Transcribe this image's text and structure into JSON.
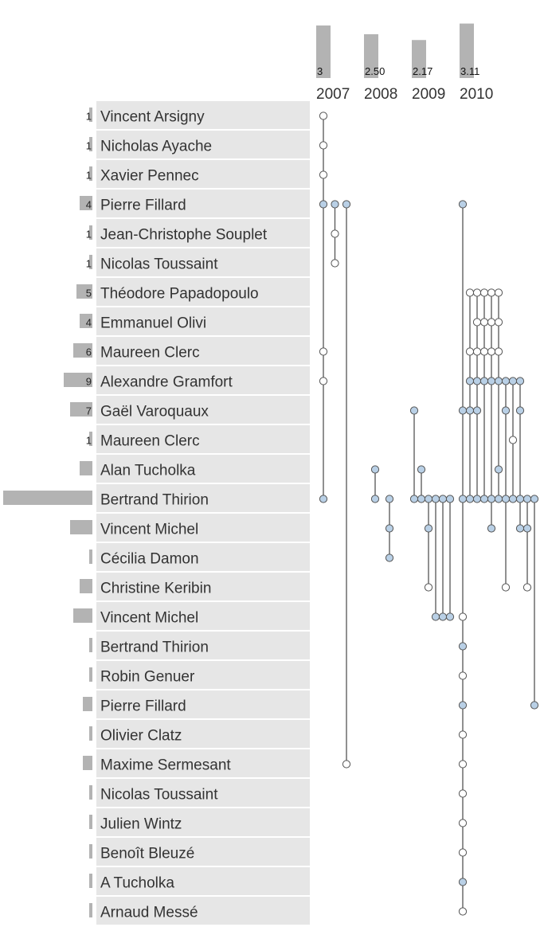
{
  "chart_data": {
    "type": "matrix-timeline",
    "colors": {
      "row_background": "#e6e6e6",
      "bar": "#b3b3b3",
      "node_highlight": "#b9d0e6",
      "node_default": "#ffffff",
      "node_stroke": "#555555",
      "line": "#555555"
    },
    "years": [
      {
        "label": "2007",
        "value_label": "3",
        "value": 3.0
      },
      {
        "label": "2008",
        "value_label": "2.50",
        "value": 2.5
      },
      {
        "label": "2009",
        "value_label": "2.17",
        "value": 2.17
      },
      {
        "label": "2010",
        "value_label": "3.11",
        "value": 3.11
      }
    ],
    "authors": [
      {
        "name": "Vincent Arsigny",
        "count_label": "1",
        "count": 1
      },
      {
        "name": "Nicholas Ayache",
        "count_label": "1",
        "count": 1
      },
      {
        "name": "Xavier Pennec",
        "count_label": "1",
        "count": 1
      },
      {
        "name": "Pierre Fillard",
        "count_label": "4",
        "count": 4
      },
      {
        "name": "Jean-Christophe Souplet",
        "count_label": "1",
        "count": 1
      },
      {
        "name": "Nicolas Toussaint",
        "count_label": "1",
        "count": 1
      },
      {
        "name": "Théodore Papadopoulo",
        "count_label": "5",
        "count": 5
      },
      {
        "name": "Emmanuel Olivi",
        "count_label": "4",
        "count": 4
      },
      {
        "name": "Maureen Clerc",
        "count_label": "6",
        "count": 6
      },
      {
        "name": "Alexandre Gramfort",
        "count_label": "9",
        "count": 9
      },
      {
        "name": "Gaël Varoquaux",
        "count_label": "7",
        "count": 7
      },
      {
        "name": "Maureen Clerc",
        "count_label": "1",
        "count": 1
      },
      {
        "name": "Alan Tucholka",
        "count_label": "",
        "count": 4
      },
      {
        "name": "Bertrand Thirion",
        "count_label": "",
        "count": 28
      },
      {
        "name": "Vincent Michel",
        "count_label": "",
        "count": 7
      },
      {
        "name": "Cécilia Damon",
        "count_label": "",
        "count": 1
      },
      {
        "name": "Christine Keribin",
        "count_label": "",
        "count": 4
      },
      {
        "name": "Vincent Michel",
        "count_label": "",
        "count": 6
      },
      {
        "name": "Bertrand Thirion",
        "count_label": "",
        "count": 1
      },
      {
        "name": "Robin Genuer",
        "count_label": "",
        "count": 1
      },
      {
        "name": "Pierre Fillard",
        "count_label": "",
        "count": 3
      },
      {
        "name": "Olivier Clatz",
        "count_label": "",
        "count": 1
      },
      {
        "name": "Maxime Sermesant",
        "count_label": "",
        "count": 3
      },
      {
        "name": "Nicolas Toussaint",
        "count_label": "",
        "count": 1
      },
      {
        "name": "Julien Wintz",
        "count_label": "",
        "count": 1
      },
      {
        "name": "Benoît Bleuzé",
        "count_label": "",
        "count": 1
      },
      {
        "name": "A Tucholka",
        "count_label": "",
        "count": 1
      },
      {
        "name": "Arnaud Messé",
        "count_label": "",
        "count": 1
      }
    ],
    "papers": [
      {
        "year": "2007",
        "authors": [
          0,
          1,
          2,
          3,
          8,
          9,
          13
        ],
        "highlight": [
          3,
          13
        ]
      },
      {
        "year": "2007",
        "authors": [
          3,
          4,
          5
        ],
        "highlight": [
          3
        ]
      },
      {
        "year": "2007",
        "authors": [
          3,
          22
        ],
        "highlight": [
          3
        ]
      },
      {
        "year": "2008",
        "authors": [
          12,
          13
        ],
        "highlight": [
          12,
          13
        ]
      },
      {
        "year": "2008",
        "authors": [
          13,
          14,
          15
        ],
        "highlight": [
          13,
          14,
          15
        ]
      },
      {
        "year": "2009",
        "authors": [
          10,
          13
        ],
        "highlight": [
          10,
          13
        ]
      },
      {
        "year": "2009",
        "authors": [
          12,
          13
        ],
        "highlight": [
          12,
          13
        ]
      },
      {
        "year": "2009",
        "authors": [
          13,
          14,
          16
        ],
        "highlight": [
          13,
          14
        ]
      },
      {
        "year": "2009",
        "authors": [
          13,
          17
        ],
        "highlight": [
          13,
          17
        ]
      },
      {
        "year": "2009",
        "authors": [
          13,
          17
        ],
        "highlight": [
          13,
          17
        ]
      },
      {
        "year": "2009",
        "authors": [
          13,
          17
        ],
        "highlight": [
          13,
          17
        ]
      },
      {
        "year": "2010",
        "authors": [
          3,
          10,
          13,
          17,
          18,
          19,
          20,
          21,
          22,
          23,
          24,
          25,
          26,
          27
        ],
        "highlight": [
          3,
          10,
          13,
          18,
          20,
          26
        ]
      },
      {
        "year": "2010",
        "authors": [
          6,
          8,
          9,
          10,
          13
        ],
        "highlight": [
          9,
          10,
          13
        ]
      },
      {
        "year": "2010",
        "authors": [
          6,
          7,
          8,
          9,
          10,
          13
        ],
        "highlight": [
          9,
          10,
          13
        ]
      },
      {
        "year": "2010",
        "authors": [
          6,
          7,
          8,
          9,
          13
        ],
        "highlight": [
          9,
          13
        ]
      },
      {
        "year": "2010",
        "authors": [
          6,
          7,
          8,
          9,
          13,
          14
        ],
        "highlight": [
          9,
          13,
          14
        ]
      },
      {
        "year": "2010",
        "authors": [
          6,
          7,
          8,
          9,
          12,
          13
        ],
        "highlight": [
          9,
          12,
          13
        ]
      },
      {
        "year": "2010",
        "authors": [
          9,
          10,
          13,
          16
        ],
        "highlight": [
          9,
          10,
          13
        ]
      },
      {
        "year": "2010",
        "authors": [
          9,
          11,
          13
        ],
        "highlight": [
          9,
          13
        ]
      },
      {
        "year": "2010",
        "authors": [
          9,
          10,
          13,
          14
        ],
        "highlight": [
          9,
          10,
          13,
          14
        ]
      },
      {
        "year": "2010",
        "authors": [
          13,
          14,
          16
        ],
        "highlight": [
          13,
          14
        ]
      },
      {
        "year": "2010",
        "authors": [
          13,
          20
        ],
        "highlight": [
          13,
          20
        ]
      }
    ]
  }
}
